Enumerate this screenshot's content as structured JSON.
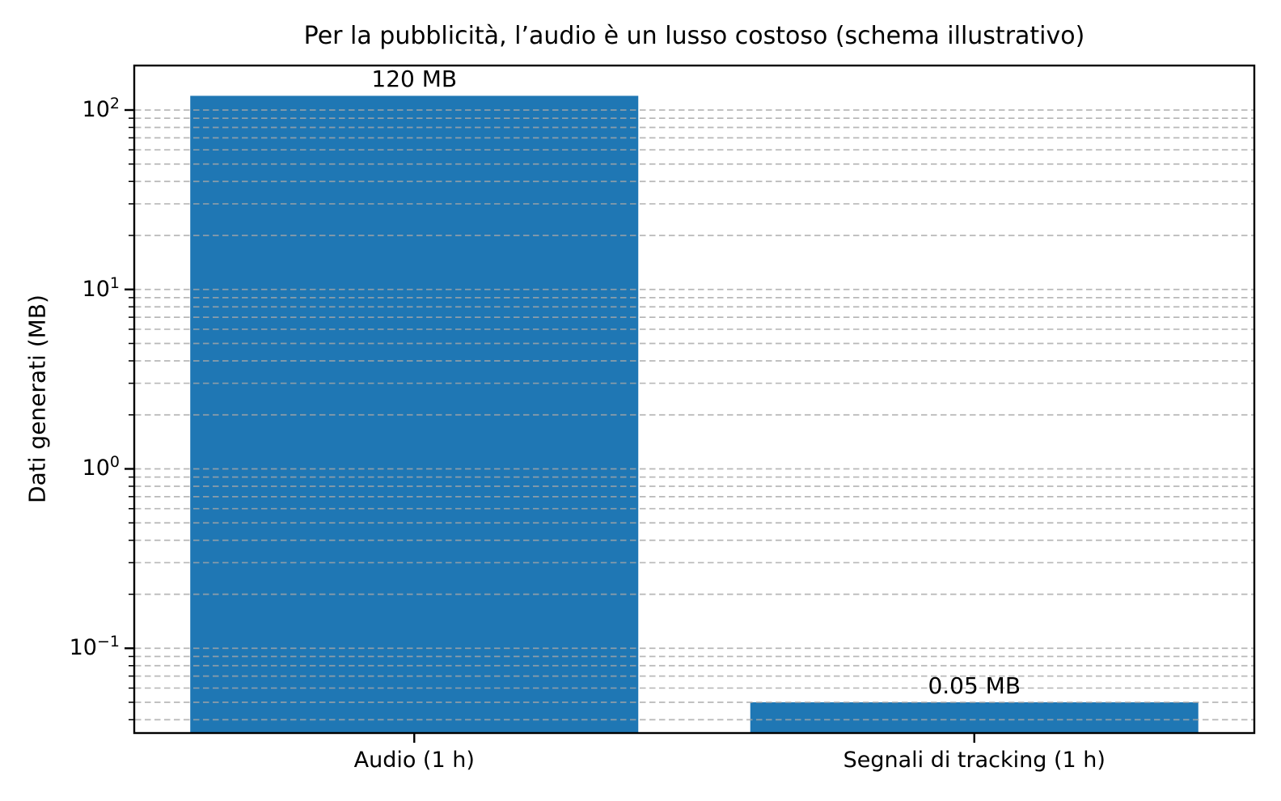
{
  "chart_data": {
    "type": "bar",
    "title": "Per la pubblicità, l’audio è un lusso costoso (schema illustrativo)",
    "xlabel": "",
    "ylabel": "Dati generati (MB)",
    "categories": [
      "Audio (1 h)",
      "Segnali di tracking (1 h)"
    ],
    "values": [
      120,
      0.05
    ],
    "bar_labels": [
      "120 MB",
      "0.05 MB"
    ],
    "bar_color": "#1f77b4",
    "yscale": "log",
    "ylim": [
      0.0337,
      177
    ],
    "ymajor_ticks": [
      100,
      10,
      1,
      0.1
    ],
    "ytick_labels": [
      {
        "mantissa": "10",
        "exponent": "2"
      },
      {
        "mantissa": "10",
        "exponent": "1"
      },
      {
        "mantissa": "10",
        "exponent": "0"
      },
      {
        "mantissa": "10",
        "exponent": "−1"
      }
    ],
    "grid": {
      "which": "both",
      "linestyle": "dashed",
      "color": "#a6a6a6",
      "opacity": 0.8
    },
    "bar_width_fraction": 0.8,
    "legend": "none",
    "frame_color": "#000000",
    "text_color": "#000000",
    "background": "#ffffff"
  }
}
